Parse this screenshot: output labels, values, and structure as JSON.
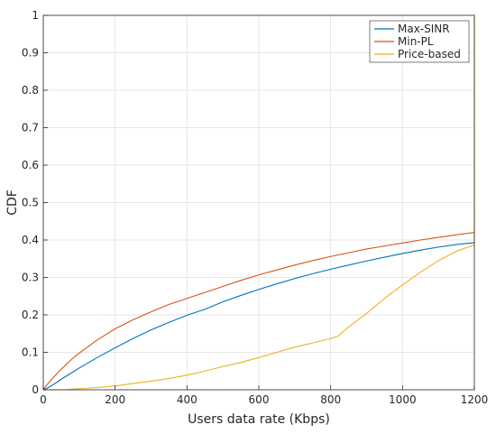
{
  "chart_data": {
    "type": "line",
    "title": "",
    "xlabel": "Users data rate (Kbps)",
    "ylabel": "CDF",
    "xlim": [
      0,
      1200
    ],
    "ylim": [
      0,
      1
    ],
    "grid": true,
    "legend_position": "top-right",
    "x_ticks": [
      "0",
      "200",
      "400",
      "600",
      "800",
      "1000",
      "1200"
    ],
    "y_ticks": [
      "0",
      "0.1",
      "0.2",
      "0.3",
      "0.4",
      "0.5",
      "0.6",
      "0.7",
      "0.8",
      "0.9",
      "1"
    ],
    "series": [
      {
        "name": "Max-SINR",
        "color": "#0072BD",
        "points": [
          [
            0,
            0
          ],
          [
            10,
            0.004
          ],
          [
            25,
            0.012
          ],
          [
            50,
            0.028
          ],
          [
            75,
            0.043
          ],
          [
            100,
            0.058
          ],
          [
            150,
            0.086
          ],
          [
            200,
            0.112
          ],
          [
            250,
            0.137
          ],
          [
            300,
            0.16
          ],
          [
            350,
            0.18
          ],
          [
            400,
            0.199
          ],
          [
            450,
            0.215
          ],
          [
            500,
            0.235
          ],
          [
            550,
            0.252
          ],
          [
            600,
            0.268
          ],
          [
            650,
            0.283
          ],
          [
            700,
            0.297
          ],
          [
            750,
            0.31
          ],
          [
            800,
            0.322
          ],
          [
            850,
            0.333
          ],
          [
            900,
            0.344
          ],
          [
            950,
            0.354
          ],
          [
            1000,
            0.364
          ],
          [
            1050,
            0.373
          ],
          [
            1100,
            0.381
          ],
          [
            1150,
            0.388
          ],
          [
            1200,
            0.393
          ]
        ]
      },
      {
        "name": "Min-PL",
        "color": "#D95319",
        "points": [
          [
            0,
            0
          ],
          [
            10,
            0.013
          ],
          [
            25,
            0.03
          ],
          [
            50,
            0.055
          ],
          [
            75,
            0.078
          ],
          [
            100,
            0.098
          ],
          [
            150,
            0.133
          ],
          [
            200,
            0.163
          ],
          [
            250,
            0.187
          ],
          [
            300,
            0.208
          ],
          [
            350,
            0.228
          ],
          [
            400,
            0.244
          ],
          [
            450,
            0.26
          ],
          [
            500,
            0.276
          ],
          [
            550,
            0.292
          ],
          [
            600,
            0.307
          ],
          [
            650,
            0.32
          ],
          [
            700,
            0.333
          ],
          [
            750,
            0.345
          ],
          [
            800,
            0.356
          ],
          [
            850,
            0.366
          ],
          [
            900,
            0.376
          ],
          [
            950,
            0.384
          ],
          [
            1000,
            0.392
          ],
          [
            1050,
            0.4
          ],
          [
            1100,
            0.407
          ],
          [
            1150,
            0.414
          ],
          [
            1200,
            0.42
          ]
        ]
      },
      {
        "name": "Price-based",
        "color": "#EDB120",
        "points": [
          [
            0,
            0
          ],
          [
            60,
            0
          ],
          [
            100,
            0.003
          ],
          [
            150,
            0.006
          ],
          [
            200,
            0.01
          ],
          [
            250,
            0.017
          ],
          [
            300,
            0.023
          ],
          [
            350,
            0.03
          ],
          [
            400,
            0.039
          ],
          [
            450,
            0.05
          ],
          [
            500,
            0.062
          ],
          [
            550,
            0.073
          ],
          [
            600,
            0.086
          ],
          [
            650,
            0.1
          ],
          [
            700,
            0.114
          ],
          [
            750,
            0.125
          ],
          [
            800,
            0.137
          ],
          [
            820,
            0.143
          ],
          [
            850,
            0.168
          ],
          [
            900,
            0.204
          ],
          [
            950,
            0.244
          ],
          [
            1000,
            0.28
          ],
          [
            1050,
            0.314
          ],
          [
            1100,
            0.345
          ],
          [
            1150,
            0.37
          ],
          [
            1200,
            0.387
          ],
          [
            1200,
            1
          ]
        ]
      }
    ]
  }
}
